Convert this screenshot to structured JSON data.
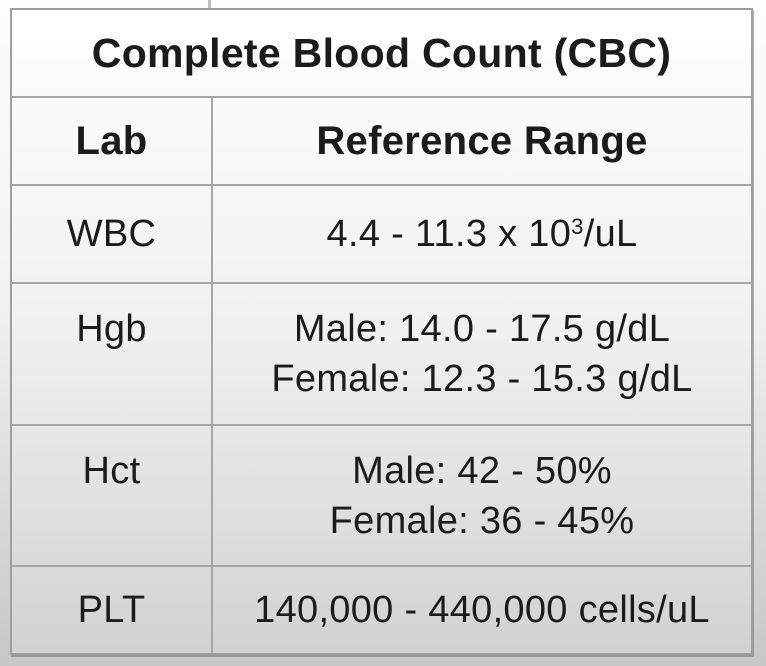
{
  "table": {
    "title": "Complete Blood Count (CBC)",
    "columns": [
      "Lab",
      "Reference Range"
    ],
    "rows": [
      {
        "lab": "WBC",
        "range": {
          "pre": "4.4 - 11.3 x 10",
          "sup": "3",
          "post": "/uL"
        }
      },
      {
        "lab": "Hgb",
        "lines": [
          "Male: 14.0 - 17.5 g/dL",
          "Female: 12.3 - 15.3 g/dL"
        ]
      },
      {
        "lab": "Hct",
        "lines": [
          "Male: 42 - 50%",
          "Female: 36 - 45%"
        ]
      },
      {
        "lab": "PLT",
        "lines": [
          "140,000 - 440,000 cells/uL"
        ]
      }
    ],
    "colors": {
      "text": "#1b1b1b",
      "grid_border": "#a6a6a6",
      "outer_border": "#9e9e9e",
      "table_bg_top": "#ffffff",
      "table_bg_bottom": "#d2d2d2",
      "page_bg_top": "#fdfdfd",
      "page_bg_bottom": "#c7c7c7"
    }
  }
}
